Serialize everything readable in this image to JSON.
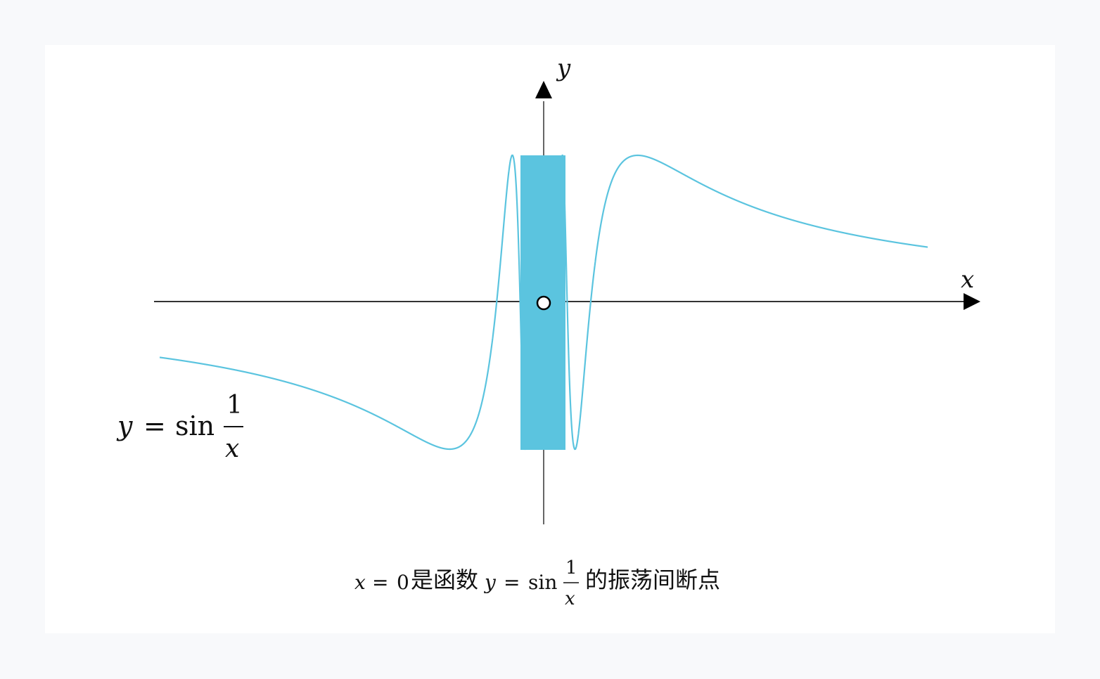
{
  "figure": {
    "curve_function": "sin(1/x)",
    "curve_color": "#5bc4df",
    "axis_color": "#333333",
    "axes": {
      "x_label": "x",
      "y_label": "y"
    },
    "curve_label": {
      "lhs": "y",
      "eq": "=",
      "fn": "sin",
      "num": "1",
      "den": "x"
    },
    "caption": {
      "prefix_x": "x",
      "prefix_eq": "=",
      "prefix_zero": "0",
      "text_is_function": "是函数",
      "fn_y": "y",
      "fn_eq": "=",
      "fn_sin": "sin",
      "fn_num": "1",
      "fn_den": "x",
      "text_suffix": "的振荡间断点"
    }
  }
}
